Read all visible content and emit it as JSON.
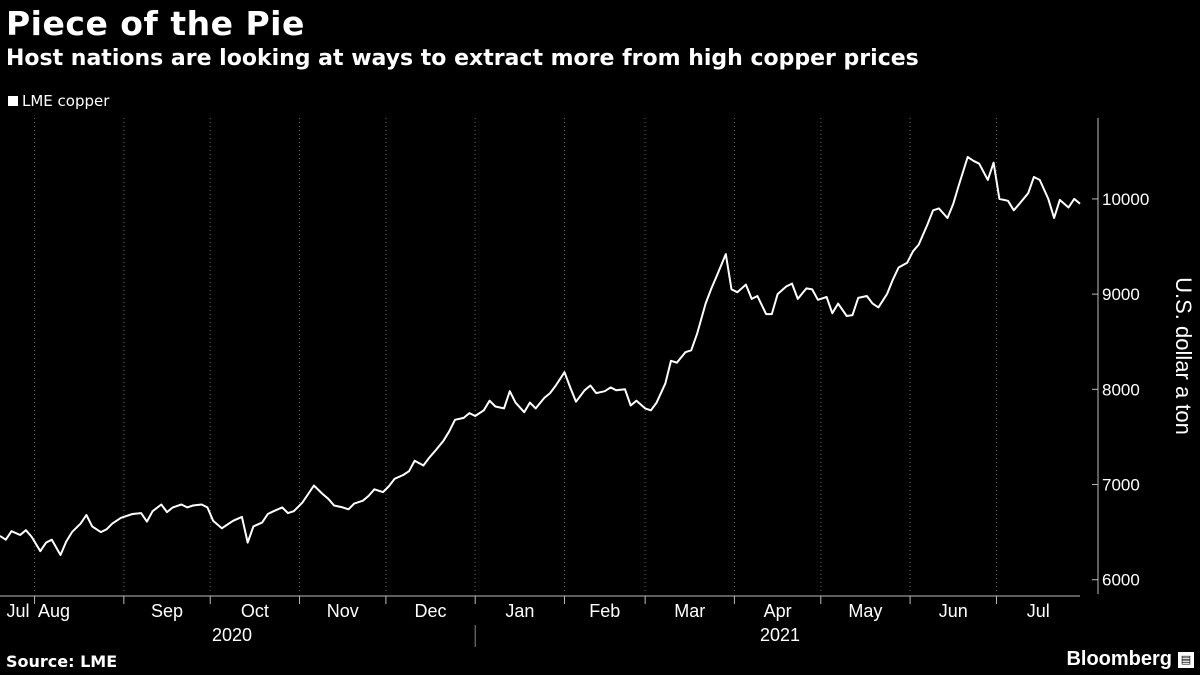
{
  "title": "Piece of the Pie",
  "subtitle": "Host nations are looking at ways to extract more from high copper prices",
  "source": "Source: LME",
  "brand": "Bloomberg",
  "colors": {
    "background": "#000000",
    "line": "#ffffff",
    "grid": "#666666"
  },
  "chart_data": {
    "type": "line",
    "title": "Piece of the Pie",
    "subtitle": "Host nations are looking at ways to extract more from high copper prices",
    "ylabel": "U.S. dollar a ton",
    "ylim": [
      5850,
      10850
    ],
    "yticks": [
      6000,
      7000,
      8000,
      9000,
      10000
    ],
    "y_axis_side": "right",
    "grid": "vertical dotted",
    "legend": {
      "placement": "top-left",
      "entries": [
        "LME copper"
      ]
    },
    "x_start": "2020-07-20",
    "x_end": "2021-07-30",
    "x_ticks": [
      {
        "label": "Jul",
        "date": "2020-07-20"
      },
      {
        "label": "Aug",
        "date": "2020-08-01"
      },
      {
        "label": "Sep",
        "date": "2020-09-01"
      },
      {
        "label": "Oct",
        "date": "2020-10-01"
      },
      {
        "label": "Nov",
        "date": "2020-11-01"
      },
      {
        "label": "Dec",
        "date": "2020-12-01"
      },
      {
        "label": "Jan",
        "date": "2021-01-01"
      },
      {
        "label": "Feb",
        "date": "2021-02-01"
      },
      {
        "label": "Mar",
        "date": "2021-03-01"
      },
      {
        "label": "Apr",
        "date": "2021-04-01"
      },
      {
        "label": "May",
        "date": "2021-05-01"
      },
      {
        "label": "Jun",
        "date": "2021-06-01"
      },
      {
        "label": "Jul",
        "date": "2021-07-01"
      }
    ],
    "years": [
      {
        "label": "2020",
        "start": "2020-07-20",
        "end": "2020-12-31"
      },
      {
        "label": "2021",
        "start": "2021-01-01",
        "end": "2021-07-30"
      }
    ],
    "series": [
      {
        "name": "LME copper",
        "points": [
          [
            "2020-07-20",
            6460
          ],
          [
            "2020-07-22",
            6420
          ],
          [
            "2020-07-24",
            6510
          ],
          [
            "2020-07-27",
            6470
          ],
          [
            "2020-07-29",
            6520
          ],
          [
            "2020-07-31",
            6450
          ],
          [
            "2020-08-03",
            6300
          ],
          [
            "2020-08-05",
            6390
          ],
          [
            "2020-08-07",
            6420
          ],
          [
            "2020-08-10",
            6260
          ],
          [
            "2020-08-12",
            6400
          ],
          [
            "2020-08-14",
            6500
          ],
          [
            "2020-08-17",
            6590
          ],
          [
            "2020-08-19",
            6680
          ],
          [
            "2020-08-21",
            6560
          ],
          [
            "2020-08-24",
            6500
          ],
          [
            "2020-08-26",
            6530
          ],
          [
            "2020-08-28",
            6590
          ],
          [
            "2020-08-31",
            6650
          ],
          [
            "2020-09-02",
            6670
          ],
          [
            "2020-09-04",
            6690
          ],
          [
            "2020-09-07",
            6700
          ],
          [
            "2020-09-09",
            6610
          ],
          [
            "2020-09-11",
            6720
          ],
          [
            "2020-09-14",
            6790
          ],
          [
            "2020-09-16",
            6710
          ],
          [
            "2020-09-18",
            6760
          ],
          [
            "2020-09-21",
            6790
          ],
          [
            "2020-09-23",
            6760
          ],
          [
            "2020-09-25",
            6780
          ],
          [
            "2020-09-28",
            6790
          ],
          [
            "2020-09-30",
            6760
          ],
          [
            "2020-10-02",
            6620
          ],
          [
            "2020-10-05",
            6540
          ],
          [
            "2020-10-07",
            6580
          ],
          [
            "2020-10-09",
            6620
          ],
          [
            "2020-10-12",
            6660
          ],
          [
            "2020-10-14",
            6390
          ],
          [
            "2020-10-16",
            6560
          ],
          [
            "2020-10-19",
            6600
          ],
          [
            "2020-10-21",
            6690
          ],
          [
            "2020-10-23",
            6720
          ],
          [
            "2020-10-26",
            6760
          ],
          [
            "2020-10-28",
            6700
          ],
          [
            "2020-10-30",
            6720
          ],
          [
            "2020-11-02",
            6810
          ],
          [
            "2020-11-04",
            6900
          ],
          [
            "2020-11-06",
            6990
          ],
          [
            "2020-11-09",
            6900
          ],
          [
            "2020-11-11",
            6850
          ],
          [
            "2020-11-13",
            6780
          ],
          [
            "2020-11-16",
            6760
          ],
          [
            "2020-11-18",
            6740
          ],
          [
            "2020-11-20",
            6800
          ],
          [
            "2020-11-23",
            6830
          ],
          [
            "2020-11-25",
            6880
          ],
          [
            "2020-11-27",
            6950
          ],
          [
            "2020-11-30",
            6920
          ],
          [
            "2020-12-02",
            6980
          ],
          [
            "2020-12-04",
            7060
          ],
          [
            "2020-12-07",
            7100
          ],
          [
            "2020-12-09",
            7140
          ],
          [
            "2020-12-11",
            7250
          ],
          [
            "2020-12-14",
            7200
          ],
          [
            "2020-12-16",
            7280
          ],
          [
            "2020-12-18",
            7350
          ],
          [
            "2020-12-21",
            7460
          ],
          [
            "2020-12-23",
            7560
          ],
          [
            "2020-12-25",
            7680
          ],
          [
            "2020-12-28",
            7700
          ],
          [
            "2020-12-30",
            7750
          ],
          [
            "2021-01-01",
            7720
          ],
          [
            "2021-01-04",
            7780
          ],
          [
            "2021-01-06",
            7880
          ],
          [
            "2021-01-08",
            7820
          ],
          [
            "2021-01-11",
            7800
          ],
          [
            "2021-01-13",
            7980
          ],
          [
            "2021-01-15",
            7860
          ],
          [
            "2021-01-18",
            7760
          ],
          [
            "2021-01-20",
            7860
          ],
          [
            "2021-01-22",
            7800
          ],
          [
            "2021-01-25",
            7910
          ],
          [
            "2021-01-27",
            7960
          ],
          [
            "2021-01-29",
            8040
          ],
          [
            "2021-02-01",
            8180
          ],
          [
            "2021-02-03",
            8020
          ],
          [
            "2021-02-05",
            7870
          ],
          [
            "2021-02-08",
            7990
          ],
          [
            "2021-02-10",
            8040
          ],
          [
            "2021-02-12",
            7960
          ],
          [
            "2021-02-15",
            7980
          ],
          [
            "2021-02-17",
            8020
          ],
          [
            "2021-02-19",
            7990
          ],
          [
            "2021-02-22",
            8000
          ],
          [
            "2021-02-24",
            7830
          ],
          [
            "2021-02-26",
            7880
          ],
          [
            "2021-03-01",
            7800
          ],
          [
            "2021-03-03",
            7780
          ],
          [
            "2021-03-05",
            7860
          ],
          [
            "2021-03-08",
            8060
          ],
          [
            "2021-03-10",
            8300
          ],
          [
            "2021-03-12",
            8280
          ],
          [
            "2021-03-15",
            8390
          ],
          [
            "2021-03-17",
            8410
          ],
          [
            "2021-03-19",
            8580
          ],
          [
            "2021-03-22",
            8900
          ],
          [
            "2021-03-24",
            9060
          ],
          [
            "2021-03-26",
            9200
          ],
          [
            "2021-03-29",
            9420
          ],
          [
            "2021-03-31",
            9050
          ],
          [
            "2021-04-02",
            9020
          ],
          [
            "2021-04-05",
            9100
          ],
          [
            "2021-04-07",
            8950
          ],
          [
            "2021-04-09",
            8980
          ],
          [
            "2021-04-12",
            8790
          ],
          [
            "2021-04-14",
            8790
          ],
          [
            "2021-04-16",
            9000
          ],
          [
            "2021-04-19",
            9080
          ],
          [
            "2021-04-21",
            9110
          ],
          [
            "2021-04-23",
            8950
          ],
          [
            "2021-04-26",
            9060
          ],
          [
            "2021-04-28",
            9050
          ],
          [
            "2021-04-30",
            8940
          ],
          [
            "2021-05-03",
            8970
          ],
          [
            "2021-05-05",
            8800
          ],
          [
            "2021-05-07",
            8900
          ],
          [
            "2021-05-10",
            8770
          ],
          [
            "2021-05-12",
            8780
          ],
          [
            "2021-05-14",
            8960
          ],
          [
            "2021-05-17",
            8980
          ],
          [
            "2021-05-19",
            8900
          ],
          [
            "2021-05-21",
            8860
          ],
          [
            "2021-05-24",
            9000
          ],
          [
            "2021-05-26",
            9150
          ],
          [
            "2021-05-28",
            9280
          ],
          [
            "2021-05-31",
            9330
          ],
          [
            "2021-06-02",
            9450
          ],
          [
            "2021-06-04",
            9520
          ],
          [
            "2021-06-07",
            9730
          ],
          [
            "2021-06-09",
            9880
          ],
          [
            "2021-06-11",
            9900
          ],
          [
            "2021-06-14",
            9800
          ],
          [
            "2021-06-16",
            9950
          ],
          [
            "2021-06-18",
            10150
          ],
          [
            "2021-06-21",
            10440
          ],
          [
            "2021-06-23",
            10400
          ],
          [
            "2021-06-25",
            10370
          ],
          [
            "2021-06-28",
            10200
          ],
          [
            "2021-06-30",
            10380
          ],
          [
            "2021-07-02",
            10000
          ],
          [
            "2021-07-05",
            9980
          ],
          [
            "2021-07-07",
            9880
          ],
          [
            "2021-07-09",
            9950
          ],
          [
            "2021-07-12",
            10060
          ],
          [
            "2021-07-14",
            10230
          ],
          [
            "2021-07-16",
            10200
          ],
          [
            "2021-07-19",
            10000
          ],
          [
            "2021-07-21",
            9800
          ],
          [
            "2021-07-23",
            9990
          ],
          [
            "2021-07-26",
            9910
          ],
          [
            "2021-07-28",
            10000
          ],
          [
            "2021-07-30",
            9950
          ]
        ]
      }
    ]
  }
}
